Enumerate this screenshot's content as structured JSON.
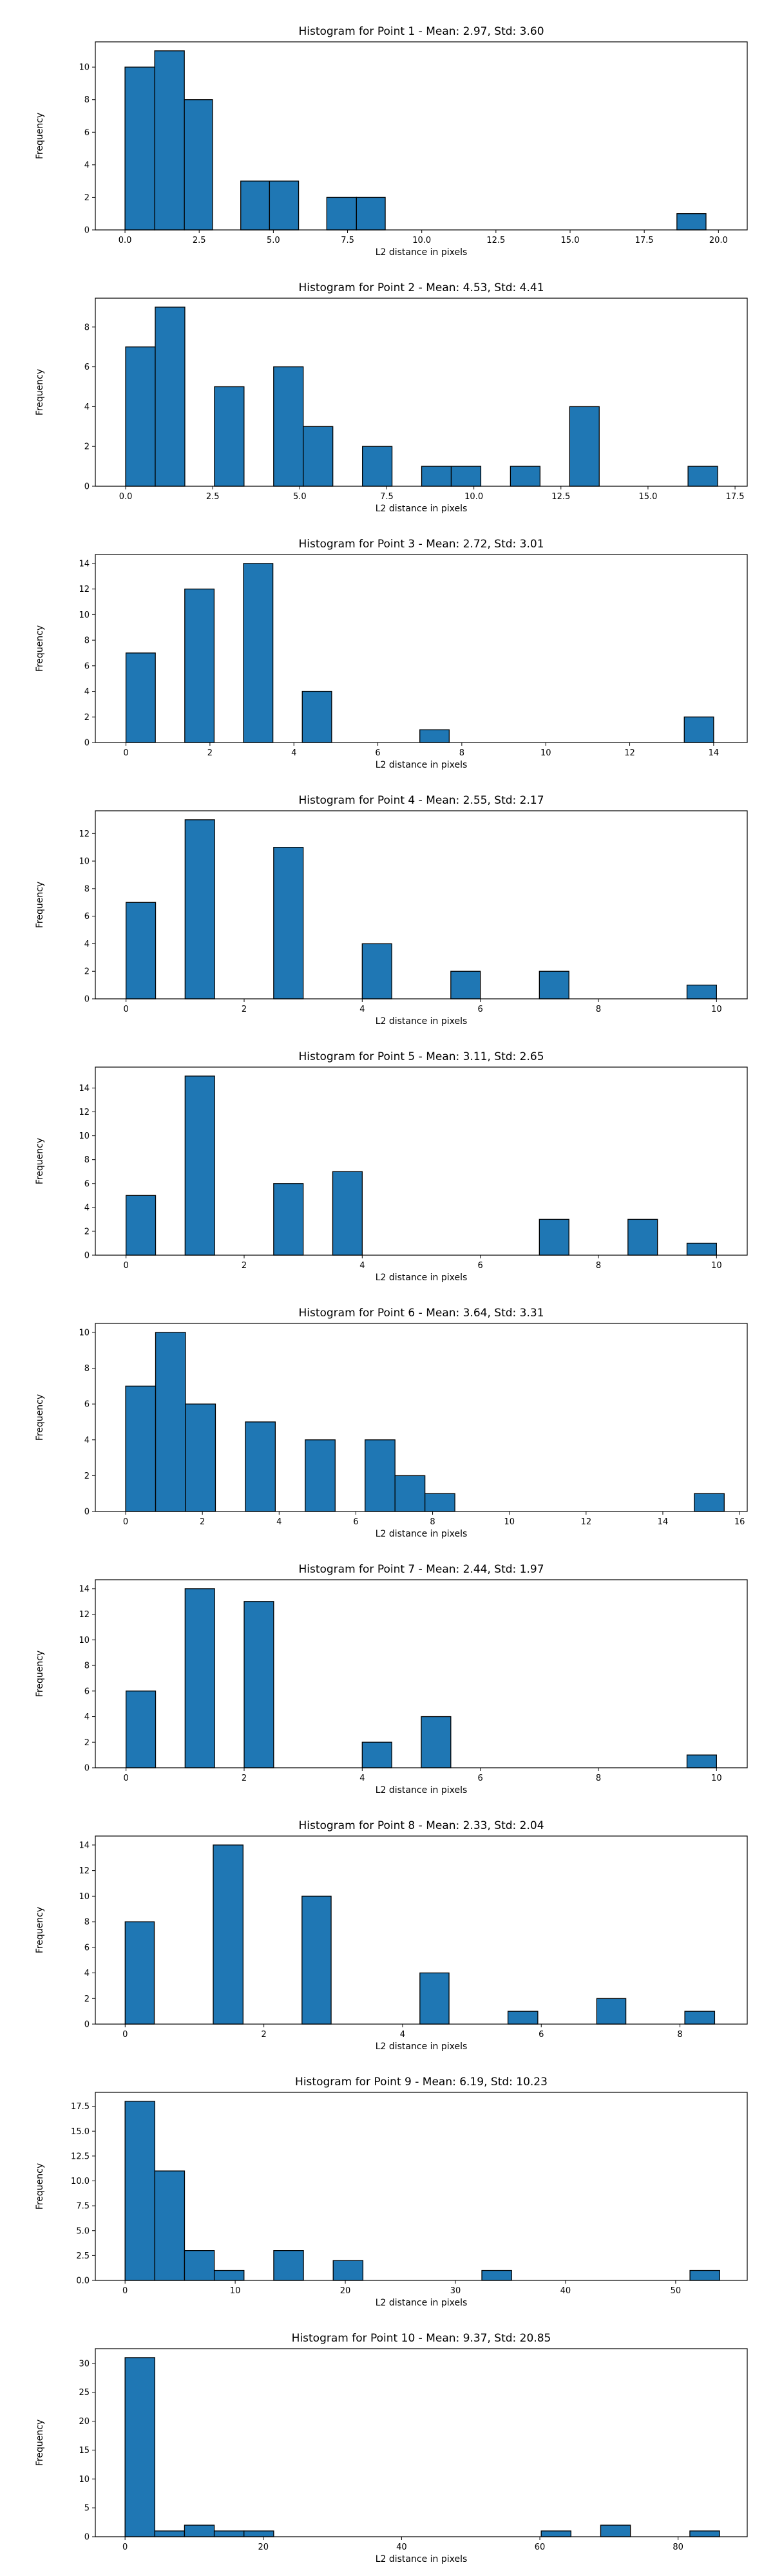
{
  "chart_data": [
    {
      "type": "bar",
      "title": "Histogram for Point 1 - Mean: 2.97, Std: 3.60",
      "xlabel": "L2 distance in pixels",
      "ylabel": "Frequency",
      "xlim": [
        -1.0,
        20.97
      ],
      "ylim": [
        0,
        11.55
      ],
      "xticks": [
        0.0,
        2.5,
        5.0,
        7.5,
        10.0,
        12.5,
        15.0,
        17.5,
        20.0
      ],
      "xtick_labels": [
        "0.0",
        "2.5",
        "5.0",
        "7.5",
        "10.0",
        "12.5",
        "15.0",
        "17.5",
        "20.0"
      ],
      "yticks": [
        0,
        2,
        4,
        6,
        8,
        10
      ],
      "ytick_labels": [
        "0",
        "2",
        "4",
        "6",
        "8",
        "10"
      ],
      "bins": [
        [
          0.0,
          1.0,
          10
        ],
        [
          1.0,
          2.0,
          11
        ],
        [
          2.0,
          2.95,
          8
        ],
        [
          3.9,
          4.87,
          3
        ],
        [
          4.87,
          5.85,
          3
        ],
        [
          6.8,
          7.8,
          2
        ],
        [
          7.8,
          8.77,
          2
        ],
        [
          18.6,
          19.58,
          1
        ]
      ],
      "grid": false,
      "legend": null
    },
    {
      "type": "bar",
      "title": "Histogram for Point 2 - Mean: 4.53, Std: 4.41",
      "xlabel": "L2 distance in pixels",
      "ylabel": "Frequency",
      "xlim": [
        -0.87,
        17.85
      ],
      "ylim": [
        0,
        9.45
      ],
      "xticks": [
        0.0,
        2.5,
        5.0,
        7.5,
        10.0,
        12.5,
        15.0,
        17.5
      ],
      "xtick_labels": [
        "0.0",
        "2.5",
        "5.0",
        "7.5",
        "10.0",
        "12.5",
        "15.0",
        "17.5"
      ],
      "yticks": [
        0,
        2,
        4,
        6,
        8
      ],
      "ytick_labels": [
        "0",
        "2",
        "4",
        "6",
        "8"
      ],
      "bins": [
        [
          0.0,
          0.85,
          7
        ],
        [
          0.85,
          1.7,
          9
        ],
        [
          2.55,
          3.4,
          5
        ],
        [
          4.25,
          5.1,
          6
        ],
        [
          5.1,
          5.95,
          3
        ],
        [
          6.8,
          7.65,
          2
        ],
        [
          8.5,
          9.35,
          1
        ],
        [
          9.35,
          10.2,
          1
        ],
        [
          11.05,
          11.9,
          1
        ],
        [
          12.75,
          13.6,
          4
        ],
        [
          16.15,
          17.0,
          1
        ]
      ],
      "grid": false,
      "legend": null
    },
    {
      "type": "bar",
      "title": "Histogram for Point 3 - Mean: 2.72, Std: 3.01",
      "xlabel": "L2 distance in pixels",
      "ylabel": "Frequency",
      "xlim": [
        -0.73,
        14.8
      ],
      "ylim": [
        0,
        14.7
      ],
      "xticks": [
        0,
        2,
        4,
        6,
        8,
        10,
        12,
        14
      ],
      "xtick_labels": [
        "0",
        "2",
        "4",
        "6",
        "8",
        "10",
        "12",
        "14"
      ],
      "yticks": [
        0,
        2,
        4,
        6,
        8,
        10,
        12,
        14
      ],
      "ytick_labels": [
        "0",
        "2",
        "4",
        "6",
        "8",
        "10",
        "12",
        "14"
      ],
      "bins": [
        [
          0.0,
          0.7,
          7
        ],
        [
          1.4,
          2.1,
          12
        ],
        [
          2.8,
          3.5,
          14
        ],
        [
          4.2,
          4.9,
          4
        ],
        [
          7.0,
          7.7,
          1
        ],
        [
          13.3,
          14.0,
          2
        ]
      ],
      "grid": false,
      "legend": null
    },
    {
      "type": "bar",
      "title": "Histogram for Point 4 - Mean: 2.55, Std: 2.17",
      "xlabel": "L2 distance in pixels",
      "ylabel": "Frequency",
      "xlim": [
        -0.52,
        10.52
      ],
      "ylim": [
        0,
        13.65
      ],
      "xticks": [
        0,
        2,
        4,
        6,
        8,
        10
      ],
      "xtick_labels": [
        "0",
        "2",
        "4",
        "6",
        "8",
        "10"
      ],
      "yticks": [
        0,
        2,
        4,
        6,
        8,
        10,
        12
      ],
      "ytick_labels": [
        "0",
        "2",
        "4",
        "6",
        "8",
        "10",
        "12"
      ],
      "bins": [
        [
          0.0,
          0.5,
          7
        ],
        [
          1.0,
          1.5,
          13
        ],
        [
          2.5,
          3.0,
          11
        ],
        [
          4.0,
          4.5,
          4
        ],
        [
          5.5,
          6.0,
          2
        ],
        [
          7.0,
          7.5,
          2
        ],
        [
          9.5,
          10.0,
          1
        ]
      ],
      "grid": false,
      "legend": null
    },
    {
      "type": "bar",
      "title": "Histogram for Point 5 - Mean: 3.11, Std: 2.65",
      "xlabel": "L2 distance in pixels",
      "ylabel": "Frequency",
      "xlim": [
        -0.52,
        10.52
      ],
      "ylim": [
        0,
        15.75
      ],
      "xticks": [
        0,
        2,
        4,
        6,
        8,
        10
      ],
      "xtick_labels": [
        "0",
        "2",
        "4",
        "6",
        "8",
        "10"
      ],
      "yticks": [
        0,
        2,
        4,
        6,
        8,
        10,
        12,
        14
      ],
      "ytick_labels": [
        "0",
        "2",
        "4",
        "6",
        "8",
        "10",
        "12",
        "14"
      ],
      "bins": [
        [
          0.0,
          0.5,
          5
        ],
        [
          1.0,
          1.5,
          15
        ],
        [
          2.5,
          3.0,
          6
        ],
        [
          3.5,
          4.0,
          7
        ],
        [
          7.0,
          7.5,
          3
        ],
        [
          8.5,
          9.0,
          3
        ],
        [
          9.5,
          10.0,
          1
        ]
      ],
      "grid": false,
      "legend": null
    },
    {
      "type": "bar",
      "title": "Histogram for Point 6 - Mean: 3.64, Std: 3.31",
      "xlabel": "L2 distance in pixels",
      "ylabel": "Frequency",
      "xlim": [
        -0.79,
        16.2
      ],
      "ylim": [
        0,
        10.5
      ],
      "xticks": [
        0,
        2,
        4,
        6,
        8,
        10,
        12,
        14,
        16
      ],
      "xtick_labels": [
        "0",
        "2",
        "4",
        "6",
        "8",
        "10",
        "12",
        "14",
        "16"
      ],
      "yticks": [
        0,
        2,
        4,
        6,
        8,
        10
      ],
      "ytick_labels": [
        "0",
        "2",
        "4",
        "6",
        "8",
        "10"
      ],
      "bins": [
        [
          0.0,
          0.78,
          7
        ],
        [
          0.78,
          1.56,
          10
        ],
        [
          1.56,
          2.34,
          6
        ],
        [
          3.12,
          3.9,
          5
        ],
        [
          4.68,
          5.46,
          4
        ],
        [
          6.24,
          7.02,
          4
        ],
        [
          7.02,
          7.8,
          2
        ],
        [
          7.8,
          8.58,
          1
        ],
        [
          14.82,
          15.6,
          1
        ]
      ],
      "grid": false,
      "legend": null
    },
    {
      "type": "bar",
      "title": "Histogram for Point 7 - Mean: 2.44, Std: 1.97",
      "xlabel": "L2 distance in pixels",
      "ylabel": "Frequency",
      "xlim": [
        -0.52,
        10.52
      ],
      "ylim": [
        0,
        14.7
      ],
      "xticks": [
        0,
        2,
        4,
        6,
        8,
        10
      ],
      "xtick_labels": [
        "0",
        "2",
        "4",
        "6",
        "8",
        "10"
      ],
      "yticks": [
        0,
        2,
        4,
        6,
        8,
        10,
        12,
        14
      ],
      "ytick_labels": [
        "0",
        "2",
        "4",
        "6",
        "8",
        "10",
        "12",
        "14"
      ],
      "bins": [
        [
          0.0,
          0.5,
          6
        ],
        [
          1.0,
          1.5,
          14
        ],
        [
          2.0,
          2.5,
          13
        ],
        [
          4.0,
          4.5,
          2
        ],
        [
          5.0,
          5.5,
          4
        ],
        [
          9.5,
          10.0,
          1
        ]
      ],
      "grid": false,
      "legend": null
    },
    {
      "type": "bar",
      "title": "Histogram for Point 8 - Mean: 2.33, Std: 2.04",
      "xlabel": "L2 distance in pixels",
      "ylabel": "Frequency",
      "xlim": [
        -0.43,
        8.97
      ],
      "ylim": [
        0,
        14.7
      ],
      "xticks": [
        0,
        2,
        4,
        6,
        8
      ],
      "xtick_labels": [
        "0",
        "2",
        "4",
        "6",
        "8"
      ],
      "yticks": [
        0,
        2,
        4,
        6,
        8,
        10,
        12,
        14
      ],
      "ytick_labels": [
        "0",
        "2",
        "4",
        "6",
        "8",
        "10",
        "12",
        "14"
      ],
      "bins": [
        [
          0.0,
          0.42,
          8
        ],
        [
          1.27,
          1.7,
          14
        ],
        [
          2.55,
          2.97,
          10
        ],
        [
          4.25,
          4.67,
          4
        ],
        [
          5.52,
          5.95,
          1
        ],
        [
          6.8,
          7.22,
          2
        ],
        [
          8.07,
          8.5,
          1
        ]
      ],
      "grid": false,
      "legend": null
    },
    {
      "type": "bar",
      "title": "Histogram for Point 9 - Mean: 6.19, Std: 10.23",
      "xlabel": "L2 distance in pixels",
      "ylabel": "Frequency",
      "xlim": [
        -2.7,
        56.5
      ],
      "ylim": [
        0,
        18.9
      ],
      "xticks": [
        0,
        10,
        20,
        30,
        40,
        50
      ],
      "xtick_labels": [
        "0",
        "10",
        "20",
        "30",
        "40",
        "50"
      ],
      "yticks": [
        0.0,
        2.5,
        5.0,
        7.5,
        10.0,
        12.5,
        15.0,
        17.5
      ],
      "ytick_labels": [
        "0.0",
        "2.5",
        "5.0",
        "7.5",
        "10.0",
        "12.5",
        "15.0",
        "17.5"
      ],
      "bins": [
        [
          0.0,
          2.7,
          18
        ],
        [
          2.7,
          5.4,
          11
        ],
        [
          5.4,
          8.1,
          3
        ],
        [
          8.1,
          10.8,
          1
        ],
        [
          13.5,
          16.2,
          3
        ],
        [
          18.9,
          21.6,
          2
        ],
        [
          32.4,
          35.1,
          1
        ],
        [
          51.3,
          54.0,
          1
        ]
      ],
      "grid": false,
      "legend": null
    },
    {
      "type": "bar",
      "title": "Histogram for Point 10 - Mean: 9.37, Std: 20.85",
      "xlabel": "L2 distance in pixels",
      "ylabel": "Frequency",
      "xlim": [
        -4.3,
        90.0
      ],
      "ylim": [
        0,
        32.55
      ],
      "xticks": [
        0,
        20,
        40,
        60,
        80
      ],
      "xtick_labels": [
        "0",
        "20",
        "40",
        "60",
        "80"
      ],
      "yticks": [
        0,
        5,
        10,
        15,
        20,
        25,
        30
      ],
      "ytick_labels": [
        "0",
        "5",
        "10",
        "15",
        "20",
        "25",
        "30"
      ],
      "bins": [
        [
          0.0,
          4.3,
          31
        ],
        [
          4.3,
          8.6,
          1
        ],
        [
          8.6,
          12.9,
          2
        ],
        [
          12.9,
          17.2,
          1
        ],
        [
          17.2,
          21.5,
          1
        ],
        [
          60.2,
          64.5,
          1
        ],
        [
          68.8,
          73.1,
          2
        ],
        [
          81.7,
          86.0,
          1
        ]
      ],
      "grid": false,
      "legend": null
    }
  ],
  "colors": {
    "bar_fill": "#1f77b4",
    "bar_edge": "#000000",
    "axes": "#000000",
    "background": "#ffffff"
  }
}
